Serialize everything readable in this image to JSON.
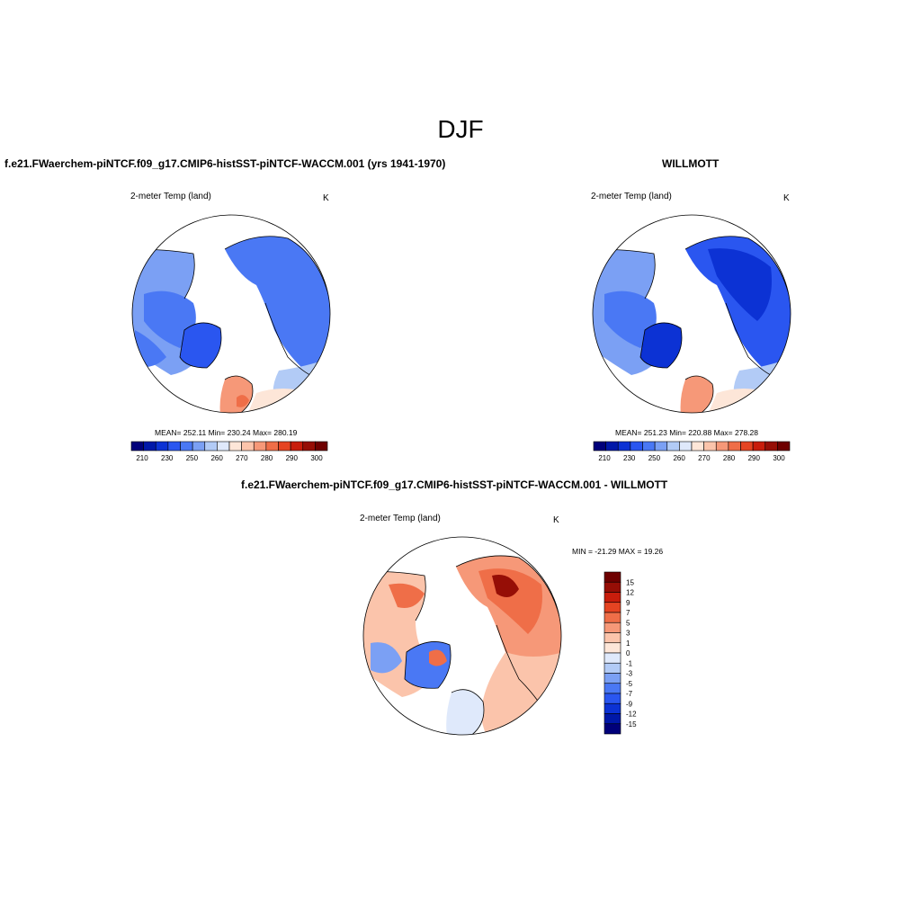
{
  "figure_title": "DJF",
  "colors": {
    "abs_scale": [
      "#00007a",
      "#0018a8",
      "#0c32d4",
      "#2a56f0",
      "#4a78f4",
      "#7ba0f4",
      "#b2cbf6",
      "#dfe9fb",
      "#fde6d8",
      "#fbc4ab",
      "#f69878",
      "#ef6e48",
      "#e54422",
      "#c81d0c",
      "#960e06",
      "#6e0000"
    ],
    "diff_scale": [
      "#00007a",
      "#0018a8",
      "#0c32d4",
      "#2a56f0",
      "#4a78f4",
      "#7ba0f4",
      "#b2cbf6",
      "#dfe9fb",
      "#fde6d8",
      "#fbc4ab",
      "#f69878",
      "#ef6e48",
      "#e54422",
      "#c81d0c",
      "#960e06",
      "#6e0000"
    ]
  },
  "panels": [
    {
      "title": "f.e21.FWaerchem-piNTCF.f09_g17.CMIP6-histSST-piNTCF-WACCM.001 (yrs 1941-1970)",
      "variable": "2-meter Temp (land)",
      "units": "K",
      "stats": "MEAN= 252.11   Min= 230.24   Max= 280.19",
      "colorbar_ticks": [
        "210",
        "230",
        "250",
        "260",
        "270",
        "280",
        "290",
        "300"
      ]
    },
    {
      "title": "WILLMOTT",
      "variable": "2-meter Temp (land)",
      "units": "K",
      "stats": "MEAN= 251.23   Min= 220.88   Max= 278.28",
      "colorbar_ticks": [
        "210",
        "230",
        "250",
        "260",
        "270",
        "280",
        "290",
        "300"
      ]
    },
    {
      "title": "f.e21.FWaerchem-piNTCF.f09_g17.CMIP6-histSST-piNTCF-WACCM.001 - WILLMOTT",
      "variable": "2-meter Temp (land)",
      "units": "K",
      "stats": "MIN = -21.29 MAX =  19.26",
      "colorbar_ticks": [
        "15",
        "12",
        "9",
        "7",
        "5",
        "3",
        "1",
        "0",
        "-1",
        "-3",
        "-5",
        "-7",
        "-9",
        "-12",
        "-15"
      ]
    }
  ]
}
